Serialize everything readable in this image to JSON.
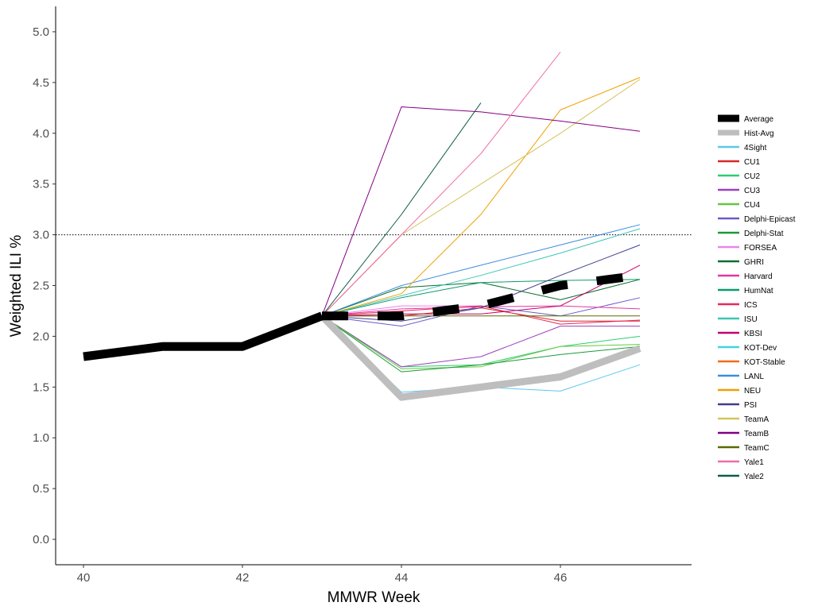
{
  "chart_data": {
    "type": "line",
    "xlabel": "MMWR Week",
    "ylabel": "Weighted ILI %",
    "xlim": [
      39.65,
      47.65
    ],
    "ylim": [
      -0.25,
      5.25
    ],
    "x_ticks": [
      40,
      42,
      44,
      46
    ],
    "x_tick_labels": [
      "40",
      "42",
      "44",
      "46"
    ],
    "y_ticks": [
      0,
      0.5,
      1,
      1.5,
      2,
      2.5,
      3,
      3.5,
      4,
      4.5,
      5
    ],
    "y_tick_labels": [
      "0.0",
      "0.5",
      "1.0",
      "1.5",
      "2.0",
      "2.5",
      "3.0",
      "3.5",
      "4.0",
      "4.5",
      "5.0"
    ],
    "reference_line": {
      "y": 3.0,
      "style": "dotted"
    },
    "grid": false,
    "legend_position": "right",
    "observed": {
      "x": [
        40,
        41,
        42,
        43
      ],
      "y": [
        1.8,
        1.9,
        1.9,
        2.2
      ]
    },
    "series": [
      {
        "name": "Average",
        "color": "#000000",
        "style": "dashed-thick",
        "x": [
          43,
          44,
          45,
          46,
          47
        ],
        "y": [
          2.2,
          2.2,
          2.3,
          2.5,
          2.6
        ]
      },
      {
        "name": " Hist-Avg",
        "color": "#bebebe",
        "style": "thick",
        "x": [
          43,
          44,
          45,
          46,
          47
        ],
        "y": [
          2.2,
          1.4,
          1.5,
          1.6,
          1.88
        ]
      },
      {
        "name": "4Sight",
        "color": "#5bc8f0",
        "x": [
          43,
          44,
          45,
          46,
          47
        ],
        "y": [
          2.2,
          1.45,
          1.5,
          1.46,
          1.72
        ]
      },
      {
        "name": "CU1",
        "color": "#d62728",
        "x": [
          43,
          44,
          45,
          46,
          47
        ],
        "y": [
          2.2,
          2.2,
          2.28,
          2.15,
          2.15
        ]
      },
      {
        "name": "CU2",
        "color": "#2ecc71",
        "x": [
          43,
          44,
          45,
          46,
          47
        ],
        "y": [
          2.2,
          1.7,
          1.72,
          1.9,
          2.0
        ]
      },
      {
        "name": "CU3",
        "color": "#9b3fbf",
        "x": [
          43,
          44,
          45,
          46,
          47
        ],
        "y": [
          2.2,
          1.7,
          1.8,
          2.1,
          2.1
        ]
      },
      {
        "name": "CU4",
        "color": "#66c63f",
        "x": [
          43,
          44,
          45,
          46,
          47
        ],
        "y": [
          2.2,
          1.68,
          1.7,
          1.9,
          1.92
        ]
      },
      {
        "name": "Delphi-Epicast",
        "color": "#6a5acd",
        "x": [
          43,
          44,
          45,
          46,
          47
        ],
        "y": [
          2.2,
          2.1,
          2.3,
          2.2,
          2.38
        ]
      },
      {
        "name": "Delphi-Stat",
        "color": "#1a9a3a",
        "x": [
          43,
          44,
          45,
          46,
          47
        ],
        "y": [
          2.2,
          1.65,
          1.72,
          1.82,
          1.9
        ]
      },
      {
        "name": "FORSEA",
        "color": "#ee82ee",
        "x": [
          43,
          44,
          45
        ],
        "y": [
          2.2,
          2.3,
          2.3
        ]
      },
      {
        "name": "GHRI",
        "color": "#0a6e2e",
        "x": [
          43,
          44,
          45,
          46,
          47
        ],
        "y": [
          2.2,
          2.48,
          2.53,
          2.36,
          2.56
        ]
      },
      {
        "name": "Harvard",
        "color": "#e8369f",
        "x": [
          43,
          44,
          45,
          46,
          47
        ],
        "y": [
          2.2,
          2.27,
          2.29,
          2.3,
          2.27
        ]
      },
      {
        "name": "HumNat",
        "color": "#0d9a6e",
        "x": [
          43,
          44,
          45,
          46,
          47
        ],
        "y": [
          2.2,
          2.38,
          2.53,
          2.55,
          2.56
        ]
      },
      {
        "name": "ICS",
        "color": "#e8295a",
        "x": [
          43,
          44,
          45,
          46,
          47
        ],
        "y": [
          2.2,
          2.25,
          2.3,
          2.12,
          2.16
        ]
      },
      {
        "name": "ISU",
        "color": "#3ec6b4",
        "x": [
          43,
          44,
          45,
          46,
          47
        ],
        "y": [
          2.2,
          2.4,
          2.6,
          2.82,
          3.06
        ]
      },
      {
        "name": "KBSI",
        "color": "#c4006b",
        "x": [
          43,
          44,
          45,
          46,
          47
        ],
        "y": [
          2.2,
          2.22,
          2.22,
          2.3,
          2.7
        ]
      },
      {
        "name": "KOT-Dev",
        "color": "#45d3dd",
        "x": [
          43,
          44
        ],
        "y": [
          2.2,
          1.44
        ]
      },
      {
        "name": "KOT-Stable",
        "color": "#f26a1b",
        "x": [
          43,
          44
        ],
        "y": [
          2.2,
          3.0
        ]
      },
      {
        "name": "LANL",
        "color": "#3e8ddd",
        "x": [
          43,
          44,
          45,
          46,
          47
        ],
        "y": [
          2.2,
          2.5,
          2.7,
          2.9,
          3.1
        ]
      },
      {
        "name": "NEU",
        "color": "#f0a000",
        "x": [
          43,
          44,
          45,
          46,
          47
        ],
        "y": [
          2.2,
          2.42,
          3.2,
          4.23,
          4.55
        ]
      },
      {
        "name": "PSI",
        "color": "#3e3e8e",
        "x": [
          43,
          44,
          45,
          46,
          47
        ],
        "y": [
          2.2,
          2.15,
          2.28,
          2.6,
          2.9
        ]
      },
      {
        "name": "TeamA",
        "color": "#d4c35a",
        "x": [
          43,
          44,
          45,
          46,
          47
        ],
        "y": [
          2.2,
          3.0,
          3.5,
          4.0,
          4.53
        ]
      },
      {
        "name": "TeamB",
        "color": "#800080",
        "x": [
          43,
          44,
          45,
          46,
          47
        ],
        "y": [
          2.2,
          4.26,
          4.21,
          4.12,
          4.02
        ]
      },
      {
        "name": "TeamC",
        "color": "#5a6b00",
        "x": [
          43,
          44,
          45,
          46,
          47
        ],
        "y": [
          2.2,
          2.2,
          2.2,
          2.2,
          2.2
        ]
      },
      {
        "name": "Yale1",
        "color": "#f06aa8",
        "x": [
          43,
          44,
          45,
          46
        ],
        "y": [
          2.2,
          3.0,
          3.8,
          4.8
        ]
      },
      {
        "name": "Yale2",
        "color": "#0e5e48",
        "x": [
          43,
          44,
          45
        ],
        "y": [
          2.2,
          3.2,
          4.3
        ]
      }
    ]
  }
}
